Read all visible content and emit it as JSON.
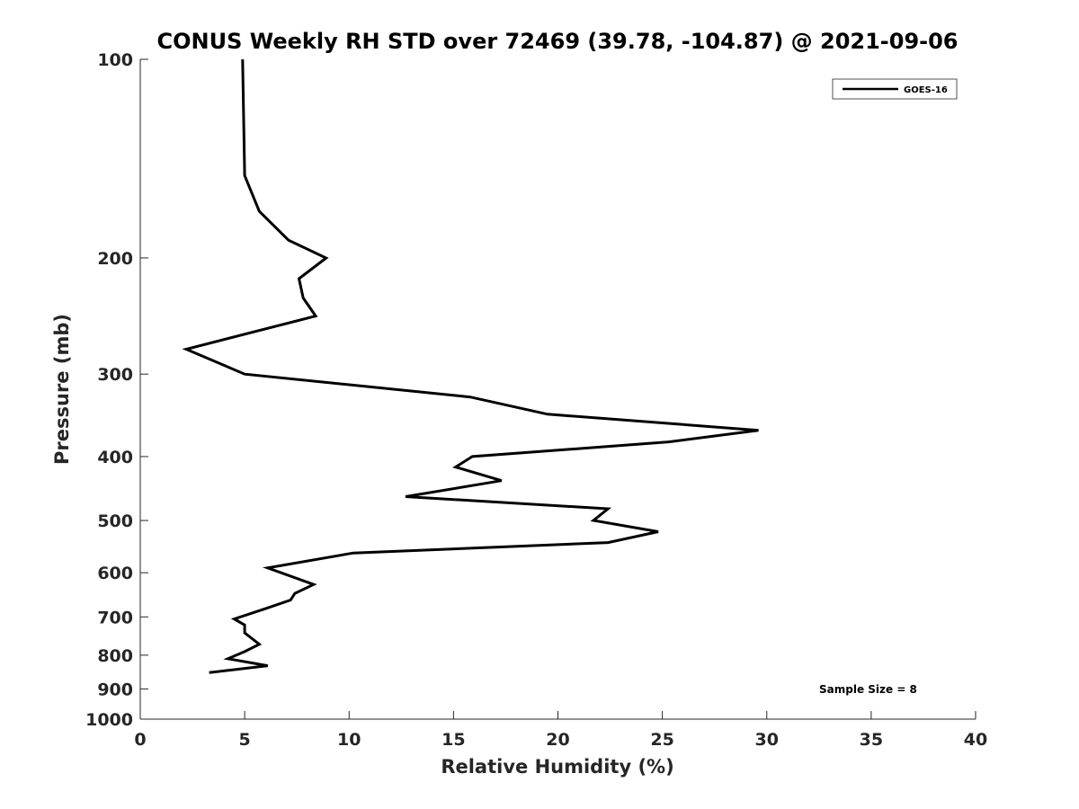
{
  "chart_data": {
    "type": "line",
    "title": "CONUS Weekly RH STD over 72469 (39.78, -104.87) @ 2021-09-06",
    "xlabel": "Relative Humidity (%)",
    "ylabel": "Pressure (mb)",
    "xlim": [
      0,
      40
    ],
    "ylim": [
      100,
      1000
    ],
    "y_scale": "log",
    "y_reversed": true,
    "x_ticks": [
      0,
      5,
      10,
      15,
      20,
      25,
      30,
      35,
      40
    ],
    "y_ticks": [
      100,
      200,
      300,
      400,
      500,
      600,
      700,
      800,
      900,
      1000
    ],
    "grid": false,
    "legend": {
      "position": "top-right",
      "entries": [
        "GOES-16"
      ]
    },
    "annotation": "Sample Size = 8",
    "series": [
      {
        "name": "GOES-16",
        "color": "#000000",
        "points": [
          {
            "x": 4.9,
            "p": 100
          },
          {
            "x": 5.0,
            "p": 150
          },
          {
            "x": 5.7,
            "p": 170
          },
          {
            "x": 7.1,
            "p": 188
          },
          {
            "x": 8.9,
            "p": 200
          },
          {
            "x": 7.6,
            "p": 215
          },
          {
            "x": 7.8,
            "p": 230
          },
          {
            "x": 8.4,
            "p": 245
          },
          {
            "x": 2.2,
            "p": 275
          },
          {
            "x": 5.0,
            "p": 300
          },
          {
            "x": 15.8,
            "p": 325
          },
          {
            "x": 19.5,
            "p": 345
          },
          {
            "x": 29.6,
            "p": 365
          },
          {
            "x": 25.3,
            "p": 380
          },
          {
            "x": 15.9,
            "p": 400
          },
          {
            "x": 15.1,
            "p": 415
          },
          {
            "x": 17.3,
            "p": 435
          },
          {
            "x": 12.7,
            "p": 460
          },
          {
            "x": 22.4,
            "p": 480
          },
          {
            "x": 21.7,
            "p": 500
          },
          {
            "x": 24.8,
            "p": 520
          },
          {
            "x": 22.4,
            "p": 540
          },
          {
            "x": 10.2,
            "p": 560
          },
          {
            "x": 6.1,
            "p": 590
          },
          {
            "x": 8.3,
            "p": 625
          },
          {
            "x": 7.4,
            "p": 645
          },
          {
            "x": 7.2,
            "p": 660
          },
          {
            "x": 6.0,
            "p": 680
          },
          {
            "x": 4.5,
            "p": 705
          },
          {
            "x": 5.0,
            "p": 720
          },
          {
            "x": 5.0,
            "p": 740
          },
          {
            "x": 5.7,
            "p": 770
          },
          {
            "x": 5.0,
            "p": 790
          },
          {
            "x": 4.2,
            "p": 810
          },
          {
            "x": 6.1,
            "p": 830
          },
          {
            "x": 3.3,
            "p": 850
          }
        ]
      }
    ]
  }
}
